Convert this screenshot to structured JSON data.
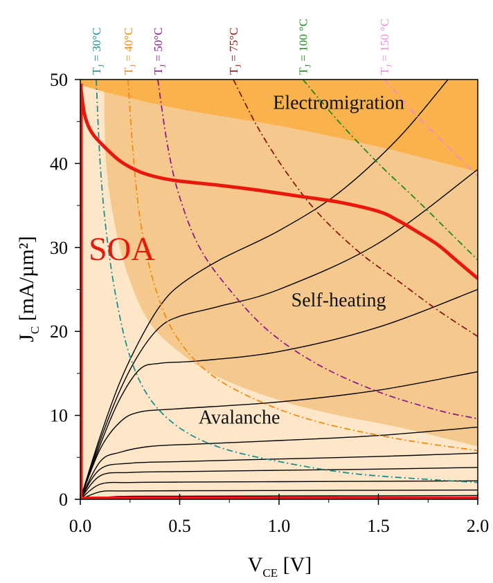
{
  "chart_data": {
    "type": "line",
    "title": "",
    "xlabel": {
      "main": "V",
      "sub": "CE",
      "unit": " [V]"
    },
    "ylabel": {
      "main": "J",
      "sub": "C",
      "unit": " [mA/µm²]"
    },
    "xlim": [
      0,
      2
    ],
    "ylim": [
      0,
      50
    ],
    "xticks": [
      "0.0",
      "0.5",
      "1.0",
      "1.5",
      "2.0"
    ],
    "yticks": [
      "0",
      "10",
      "20",
      "30",
      "40",
      "50"
    ],
    "regions": [
      {
        "label": "Electromigration",
        "color": "#f9b24c",
        "anchor": [
          1.3,
          46.5
        ]
      },
      {
        "label": "Self-heating",
        "color": "#f5c98d",
        "anchor": [
          1.3,
          23
        ]
      },
      {
        "label": "Avalanche",
        "color": "#fde7c8",
        "anchor": [
          0.8,
          9
        ]
      }
    ],
    "soa": {
      "label": "SOA",
      "color": "#e8180c",
      "boundary": [
        [
          0.0,
          49.5
        ],
        [
          0.02,
          46
        ],
        [
          0.05,
          44
        ],
        [
          0.1,
          42.5
        ],
        [
          0.2,
          40.3
        ],
        [
          0.3,
          39
        ],
        [
          0.4,
          38.3
        ],
        [
          0.5,
          37.9
        ],
        [
          0.7,
          37.4
        ],
        [
          0.9,
          36.8
        ],
        [
          1.1,
          36.1
        ],
        [
          1.3,
          35.4
        ],
        [
          1.5,
          34.3
        ],
        [
          1.6,
          33.2
        ],
        [
          1.7,
          31.8
        ],
        [
          1.8,
          30.3
        ],
        [
          1.9,
          28.3
        ],
        [
          2.0,
          26.3
        ]
      ]
    },
    "output_characteristics": [
      {
        "values": [
          [
            0,
            0
          ],
          [
            0.2,
            0.35
          ],
          [
            0.5,
            0.37
          ],
          [
            1.0,
            0.4
          ],
          [
            1.5,
            0.42
          ],
          [
            2.0,
            0.45
          ]
        ]
      },
      {
        "values": [
          [
            0,
            0
          ],
          [
            0.1,
            0.9
          ],
          [
            0.2,
            1.0
          ],
          [
            0.5,
            1.02
          ],
          [
            1.0,
            1.05
          ],
          [
            1.5,
            1.08
          ],
          [
            2.0,
            1.1
          ]
        ]
      },
      {
        "values": [
          [
            0,
            0
          ],
          [
            0.1,
            1.8
          ],
          [
            0.25,
            2.0
          ],
          [
            0.5,
            2.05
          ],
          [
            1.0,
            2.1
          ],
          [
            1.5,
            2.15
          ],
          [
            2.0,
            2.2
          ]
        ]
      },
      {
        "values": [
          [
            0,
            0
          ],
          [
            0.1,
            2.8
          ],
          [
            0.25,
            3.2
          ],
          [
            0.5,
            3.3
          ],
          [
            1.0,
            3.45
          ],
          [
            1.5,
            3.6
          ],
          [
            2.0,
            3.8
          ]
        ]
      },
      {
        "values": [
          [
            0,
            0
          ],
          [
            0.1,
            3.6
          ],
          [
            0.25,
            4.3
          ],
          [
            0.5,
            4.5
          ],
          [
            1.0,
            4.8
          ],
          [
            1.5,
            5.1
          ],
          [
            2.0,
            5.5
          ]
        ]
      },
      {
        "values": [
          [
            0,
            0
          ],
          [
            0.1,
            4.5
          ],
          [
            0.2,
            5.6
          ],
          [
            0.35,
            6.3
          ],
          [
            0.6,
            6.6
          ],
          [
            1.0,
            7.0
          ],
          [
            1.5,
            7.6
          ],
          [
            2.0,
            8.6
          ]
        ]
      },
      {
        "values": [
          [
            0,
            0
          ],
          [
            0.1,
            6
          ],
          [
            0.2,
            9.2
          ],
          [
            0.3,
            10.4
          ],
          [
            0.5,
            10.8
          ],
          [
            1.0,
            11.6
          ],
          [
            1.5,
            13
          ],
          [
            2.0,
            15.2
          ]
        ]
      },
      {
        "values": [
          [
            0,
            0
          ],
          [
            0.1,
            6.5
          ],
          [
            0.2,
            12
          ],
          [
            0.3,
            15.5
          ],
          [
            0.4,
            16.2
          ],
          [
            0.6,
            16.5
          ],
          [
            1.0,
            17.6
          ],
          [
            1.5,
            20.5
          ],
          [
            2.0,
            25
          ]
        ]
      },
      {
        "values": [
          [
            0,
            0
          ],
          [
            0.1,
            7
          ],
          [
            0.2,
            13
          ],
          [
            0.3,
            17.5
          ],
          [
            0.4,
            20.5
          ],
          [
            0.5,
            21.8
          ],
          [
            0.7,
            23
          ],
          [
            1.0,
            25
          ],
          [
            1.5,
            30.5
          ],
          [
            2.0,
            39.3
          ]
        ]
      },
      {
        "values": [
          [
            0,
            0
          ],
          [
            0.1,
            7.5
          ],
          [
            0.2,
            14
          ],
          [
            0.3,
            19
          ],
          [
            0.4,
            23
          ],
          [
            0.5,
            25.5
          ],
          [
            0.7,
            28.5
          ],
          [
            1.0,
            32
          ],
          [
            1.3,
            36.5
          ],
          [
            1.6,
            43
          ],
          [
            1.85,
            50
          ]
        ]
      }
    ],
    "isotherms": [
      {
        "label": "30°C",
        "color": "#1b8f8f",
        "values": [
          [
            0.08,
            50
          ],
          [
            0.1,
            40
          ],
          [
            0.13,
            32
          ],
          [
            0.18,
            24
          ],
          [
            0.25,
            17
          ],
          [
            0.35,
            12
          ],
          [
            0.5,
            8.5
          ],
          [
            0.7,
            6.2
          ],
          [
            1.0,
            4.5
          ],
          [
            1.4,
            3.0
          ],
          [
            2.0,
            2.0
          ]
        ]
      },
      {
        "label": "40°C",
        "color": "#f28a12",
        "values": [
          [
            0.24,
            50
          ],
          [
            0.27,
            40
          ],
          [
            0.31,
            32
          ],
          [
            0.38,
            25
          ],
          [
            0.48,
            19.5
          ],
          [
            0.65,
            15
          ],
          [
            0.9,
            11.7
          ],
          [
            1.2,
            9.2
          ],
          [
            1.6,
            7.2
          ],
          [
            2.0,
            5.8
          ]
        ]
      },
      {
        "label": "50°C",
        "color": "#8c1a8c",
        "values": [
          [
            0.39,
            50
          ],
          [
            0.44,
            42
          ],
          [
            0.5,
            36
          ],
          [
            0.6,
            30
          ],
          [
            0.75,
            25
          ],
          [
            0.95,
            20
          ],
          [
            1.2,
            16
          ],
          [
            1.5,
            12.8
          ],
          [
            1.8,
            10.6
          ],
          [
            2.0,
            9.6
          ]
        ]
      },
      {
        "label": "75°C",
        "color": "#8a1414",
        "values": [
          [
            0.77,
            50
          ],
          [
            0.9,
            44
          ],
          [
            1.05,
            38.5
          ],
          [
            1.2,
            34
          ],
          [
            1.4,
            29.5
          ],
          [
            1.6,
            26
          ],
          [
            1.8,
            22.5
          ],
          [
            2.0,
            19.4
          ]
        ]
      },
      {
        "label": "100 °C",
        "color": "#1b8a1b",
        "values": [
          [
            1.12,
            50
          ],
          [
            1.3,
            45
          ],
          [
            1.5,
            40
          ],
          [
            1.7,
            35.5
          ],
          [
            1.85,
            32
          ],
          [
            2.0,
            28.5
          ]
        ]
      },
      {
        "label": "150 °C",
        "color": "#f08ad8",
        "values": [
          [
            1.53,
            50
          ],
          [
            1.7,
            45.5
          ],
          [
            1.85,
            42
          ],
          [
            2.0,
            38.5
          ]
        ]
      }
    ],
    "iso_prefix": {
      "main": "T",
      "sub": "J",
      "eq": " = "
    },
    "electromigration_boundary": [
      [
        0.0,
        50
      ],
      [
        0.05,
        49
      ],
      [
        0.5,
        46.5
      ],
      [
        1.0,
        44.5
      ],
      [
        1.5,
        42
      ],
      [
        2.0,
        39
      ]
    ],
    "selfheating_boundary": [
      [
        0.12,
        50
      ],
      [
        0.13,
        40
      ],
      [
        0.18,
        32
      ],
      [
        0.25,
        26
      ],
      [
        0.35,
        21
      ],
      [
        0.5,
        17.5
      ],
      [
        0.7,
        14.5
      ],
      [
        1.0,
        11.8
      ],
      [
        1.3,
        10
      ],
      [
        1.6,
        8.6
      ],
      [
        2.0,
        6.3
      ]
    ]
  }
}
